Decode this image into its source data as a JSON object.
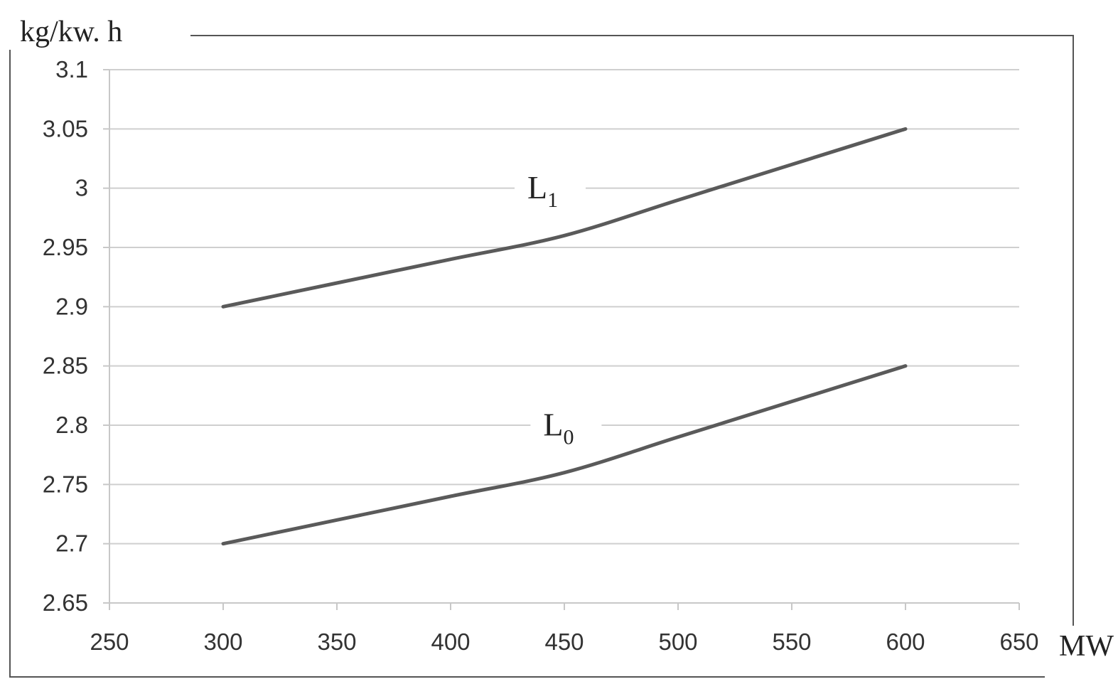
{
  "chart_data": {
    "type": "line",
    "title": "",
    "ylabel": "kg/kw. h",
    "xlabel": "MW",
    "xlim": [
      250,
      650
    ],
    "ylim": [
      2.65,
      3.1
    ],
    "x_ticks": [
      "250",
      "300",
      "350",
      "400",
      "450",
      "500",
      "550",
      "600",
      "650"
    ],
    "y_ticks": [
      "2.65",
      "2.7",
      "2.75",
      "2.8",
      "2.85",
      "2.9",
      "2.95",
      "3",
      "3.05",
      "3.1"
    ],
    "grid": true,
    "legend": "none",
    "series": [
      {
        "name": "L1",
        "label_main": "L",
        "label_sub": "1",
        "label_at": [
          440,
          2.995
        ],
        "x": [
          300,
          350,
          400,
          450,
          500,
          550,
          600
        ],
        "values": [
          2.9,
          2.92,
          2.94,
          2.96,
          2.99,
          3.02,
          3.05
        ]
      },
      {
        "name": "L0",
        "label_main": "L",
        "label_sub": "0",
        "label_at": [
          447,
          2.795
        ],
        "x": [
          300,
          350,
          400,
          450,
          500,
          550,
          600
        ],
        "values": [
          2.7,
          2.72,
          2.74,
          2.76,
          2.79,
          2.82,
          2.85
        ]
      }
    ],
    "colors": {
      "line": "#5a5a5a",
      "grid": "#cfcfcf",
      "axis": "#c8c8c8",
      "frame": "#555555"
    }
  }
}
